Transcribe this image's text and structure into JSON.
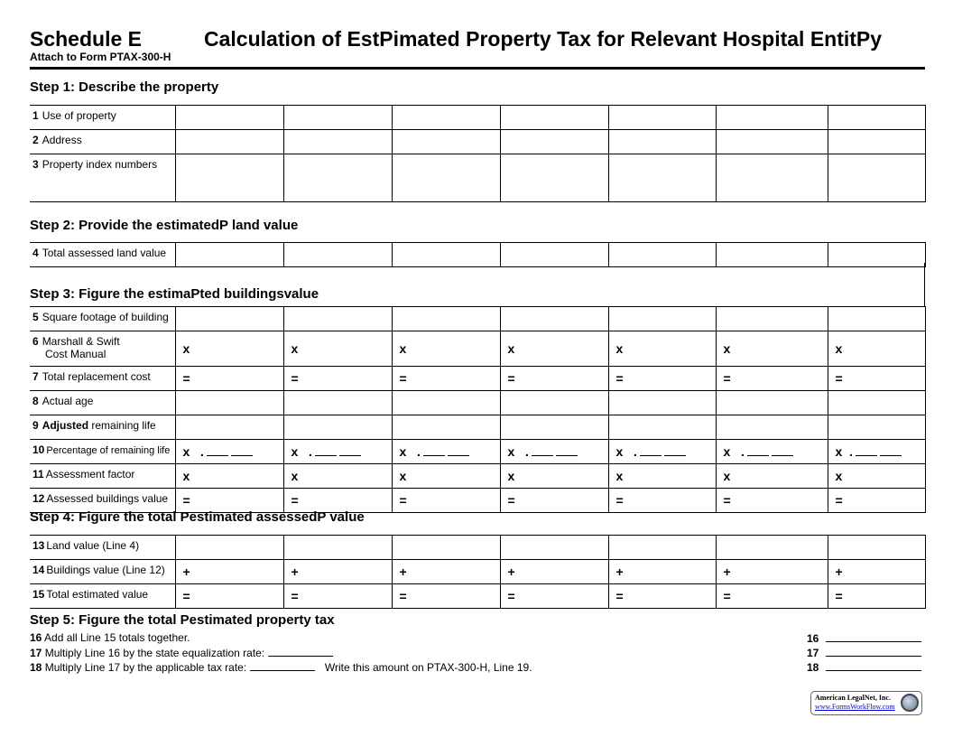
{
  "header": {
    "schedule": "Schedule E",
    "attach": "Attach to Form PTAX-300-H",
    "title": "Calculation of EstPimated Property Tax for Relevant Hospital EntitPy"
  },
  "steps": {
    "s1": "Step 1:  Describe the property",
    "s2": "Step 2:  Provide the estimatedP land value",
    "s3": "Step 3:  Figure the estimaPted buildingsvalue",
    "s4": "Step 4:  Figure the total Pestimated assessedP value",
    "s5": "Step 5:  Figure the total Pestimated property tax"
  },
  "lines": {
    "l1": {
      "num": "1",
      "label": "Use of property"
    },
    "l2": {
      "num": "2",
      "label": "Address"
    },
    "l3": {
      "num": "3",
      "label": "Property index numbers"
    },
    "l4": {
      "num": "4",
      "label": "Total assessed land value"
    },
    "l5": {
      "num": "5",
      "label": "Square footage of building"
    },
    "l6": {
      "num": "6",
      "label": "Marshall & Swift",
      "label2": "Cost Manual"
    },
    "l7": {
      "num": "7",
      "label": "Total replacement cost"
    },
    "l8": {
      "num": "8",
      "label": "Actual age"
    },
    "l9": {
      "num": "9",
      "label_bold": "Adjusted",
      "label": " remaining life"
    },
    "l10": {
      "num": "10",
      "label": "Percentage of remaining life"
    },
    "l11": {
      "num": "11",
      "label": "Assessment factor"
    },
    "l12": {
      "num": "12",
      "label": "Assessed buildings value"
    },
    "l13": {
      "num": "13",
      "label": "Land value (Line 4)"
    },
    "l14": {
      "num": "14",
      "label": "Buildings value (Line 12)"
    },
    "l15": {
      "num": "15",
      "label": "Total estimated value"
    },
    "l16": {
      "num": "16",
      "label": "Add all Line 15 totals together."
    },
    "l17": {
      "num": "17",
      "label": "Multiply Line 16 by the state equalization rate:"
    },
    "l18": {
      "num": "18",
      "label": "Multiply Line 17 by the applicable tax rate:",
      "note": "Write this amount on PTAX-300-H, Line 19."
    }
  },
  "operators": {
    "times": "x",
    "equals": "=",
    "plus": "+",
    "decimal": "."
  },
  "logo": {
    "line1": "American LegalNet, Inc.",
    "line2": "www.FormsWorkFlow.com"
  }
}
